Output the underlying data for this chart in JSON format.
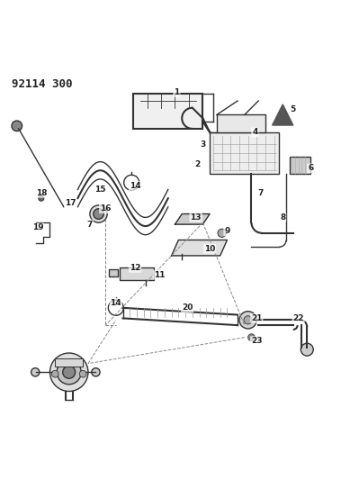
{
  "title": "92114 300",
  "background_color": "#ffffff",
  "line_color": "#333333",
  "text_color": "#222222",
  "figsize": [
    3.89,
    5.33
  ],
  "dpi": 100
}
